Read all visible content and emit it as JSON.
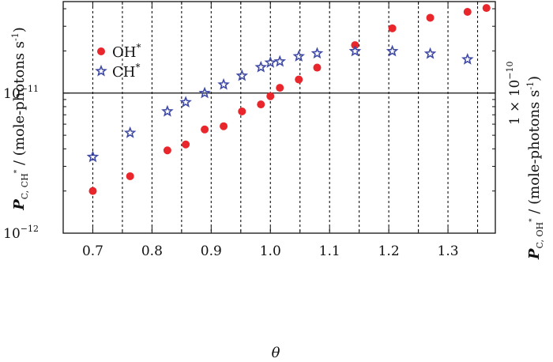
{
  "chart_data": {
    "type": "scatter",
    "xlabel": "θ",
    "ylabel_left": {
      "main": "P",
      "sub": "C, CH",
      "sup": "*",
      "rest": " / (mole-photons s",
      "unit_sup": "-1",
      "close": ")"
    },
    "ylabel_right": {
      "main": "P",
      "sub": "C, OH",
      "sup": "*",
      "rest": " / (mole-photons s",
      "unit_sup": "-1",
      "close": ")"
    },
    "xlim": [
      0.65,
      1.38
    ],
    "x_ticks": [
      {
        "value": 0.7,
        "label": "0.7"
      },
      {
        "value": 0.8,
        "label": "0.8"
      },
      {
        "value": 0.9,
        "label": "0.9"
      },
      {
        "value": 1.0,
        "label": "1.0"
      },
      {
        "value": 1.1,
        "label": "1.1"
      },
      {
        "value": 1.2,
        "label": "1.2"
      },
      {
        "value": 1.3,
        "label": "1.3"
      }
    ],
    "left_axis": {
      "scale": "log",
      "ylim": [
        1e-12,
        4.5e-11
      ],
      "ticks": [
        {
          "value": 1e-12,
          "base": "10",
          "exp": "−12"
        },
        {
          "value": 1e-11,
          "base": "10",
          "exp": "−11"
        }
      ]
    },
    "right_axis": {
      "scale": "log",
      "ylim": [
        1e-11,
        4.5e-10
      ],
      "ticks": [
        {
          "value": 1e-10,
          "prefix": "1 × 10",
          "exp": "−10"
        }
      ]
    },
    "gridlines_x": [
      0.7,
      0.75,
      0.8,
      0.85,
      0.9,
      0.95,
      1.0,
      1.05,
      1.1,
      1.15,
      1.2,
      1.25,
      1.3,
      1.35
    ],
    "reference_line_y_left": 1e-11,
    "legend": {
      "position": "top-left"
    },
    "series": [
      {
        "name": "OH",
        "name_sup": "*",
        "marker": "circle",
        "color": "#e8262b",
        "axis": "right",
        "points": [
          {
            "x": 0.7,
            "y": 2e-11
          },
          {
            "x": 0.763,
            "y": 2.55e-11
          },
          {
            "x": 0.826,
            "y": 3.9e-11
          },
          {
            "x": 0.857,
            "y": 4.3e-11
          },
          {
            "x": 0.889,
            "y": 5.5e-11
          },
          {
            "x": 0.921,
            "y": 5.8e-11
          },
          {
            "x": 0.952,
            "y": 7.4e-11
          },
          {
            "x": 0.984,
            "y": 8.3e-11
          },
          {
            "x": 1.0,
            "y": 9.5e-11
          },
          {
            "x": 1.016,
            "y": 1.09e-10
          },
          {
            "x": 1.048,
            "y": 1.25e-10
          },
          {
            "x": 1.079,
            "y": 1.52e-10
          },
          {
            "x": 1.143,
            "y": 2.2e-10
          },
          {
            "x": 1.206,
            "y": 2.9e-10
          },
          {
            "x": 1.27,
            "y": 3.45e-10
          },
          {
            "x": 1.333,
            "y": 3.8e-10
          },
          {
            "x": 1.365,
            "y": 4.05e-10
          }
        ]
      },
      {
        "name": "CH",
        "name_sup": "*",
        "marker": "star",
        "color": "#3f4aa6",
        "axis": "left",
        "points": [
          {
            "x": 0.7,
            "y": 3.5e-12
          },
          {
            "x": 0.763,
            "y": 5.2e-12
          },
          {
            "x": 0.826,
            "y": 7.4e-12
          },
          {
            "x": 0.857,
            "y": 8.6e-12
          },
          {
            "x": 0.889,
            "y": 1e-11
          },
          {
            "x": 0.921,
            "y": 1.15e-11
          },
          {
            "x": 0.952,
            "y": 1.33e-11
          },
          {
            "x": 0.984,
            "y": 1.53e-11
          },
          {
            "x": 1.0,
            "y": 1.65e-11
          },
          {
            "x": 1.016,
            "y": 1.68e-11
          },
          {
            "x": 1.048,
            "y": 1.83e-11
          },
          {
            "x": 1.079,
            "y": 1.92e-11
          },
          {
            "x": 1.143,
            "y": 1.99e-11
          },
          {
            "x": 1.206,
            "y": 1.99e-11
          },
          {
            "x": 1.27,
            "y": 1.91e-11
          },
          {
            "x": 1.333,
            "y": 1.74e-11
          }
        ]
      }
    ]
  }
}
